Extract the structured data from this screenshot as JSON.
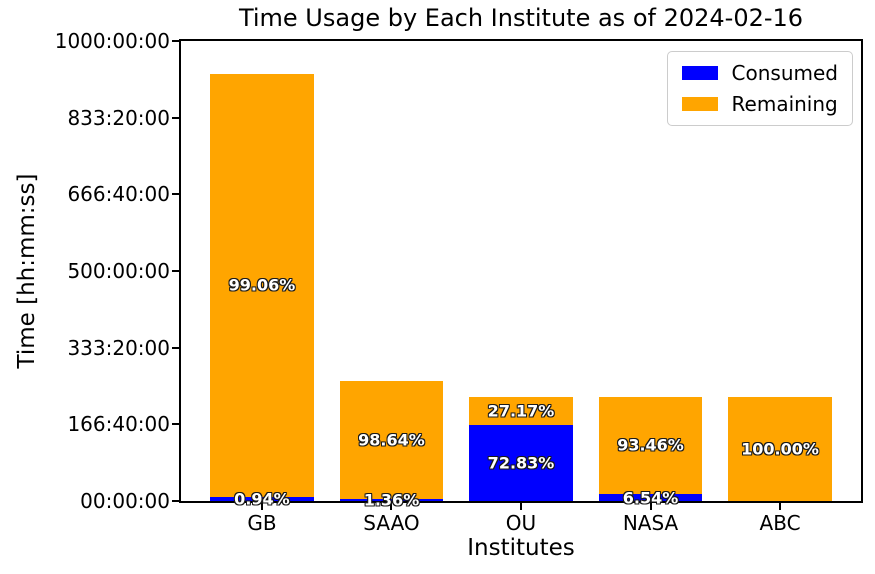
{
  "figure": {
    "background": "#ffffff"
  },
  "chart_data": {
    "type": "bar",
    "stacked": true,
    "title": "Time Usage by Each Institute as of 2024-02-16",
    "xlabel": "Institutes",
    "ylabel": "Time [hh:mm:ss]",
    "categories": [
      "GB",
      "SAAO",
      "OU",
      "NASA",
      "ABC"
    ],
    "series": [
      {
        "name": "Consumed",
        "color": "#0000ff",
        "values_hours": [
          8.7,
          3.5,
          165.3,
          14.9,
          0
        ],
        "percent_labels": [
          "0.94%",
          "1.36%",
          "72.83%",
          "6.54%",
          ""
        ]
      },
      {
        "name": "Remaining",
        "color": "#ffa500",
        "values_hours": [
          920.3,
          256.5,
          61.7,
          212.1,
          227.0
        ],
        "percent_labels": [
          "99.06%",
          "98.64%",
          "27.17%",
          "93.46%",
          "100.00%"
        ]
      }
    ],
    "totals_hours": [
      929.0,
      260.0,
      227.0,
      227.0,
      227.0
    ],
    "ylim_hours": [
      0,
      1000
    ],
    "yticks": [
      {
        "value": 0,
        "label": "00:00:00"
      },
      {
        "value": 166.6667,
        "label": "166:40:00"
      },
      {
        "value": 333.3333,
        "label": "333:20:00"
      },
      {
        "value": 500,
        "label": "500:00:00"
      },
      {
        "value": 666.6667,
        "label": "666:40:00"
      },
      {
        "value": 833.3333,
        "label": "833:20:00"
      },
      {
        "value": 1000,
        "label": "1000:00:00"
      }
    ],
    "legend": {
      "position": "upper right",
      "entries": [
        "Consumed",
        "Remaining"
      ]
    },
    "grid": false,
    "bar_label_text_color": "#ffffff",
    "bar_label_outline_color": "#1a1a1a",
    "axis_color": "#000000"
  }
}
